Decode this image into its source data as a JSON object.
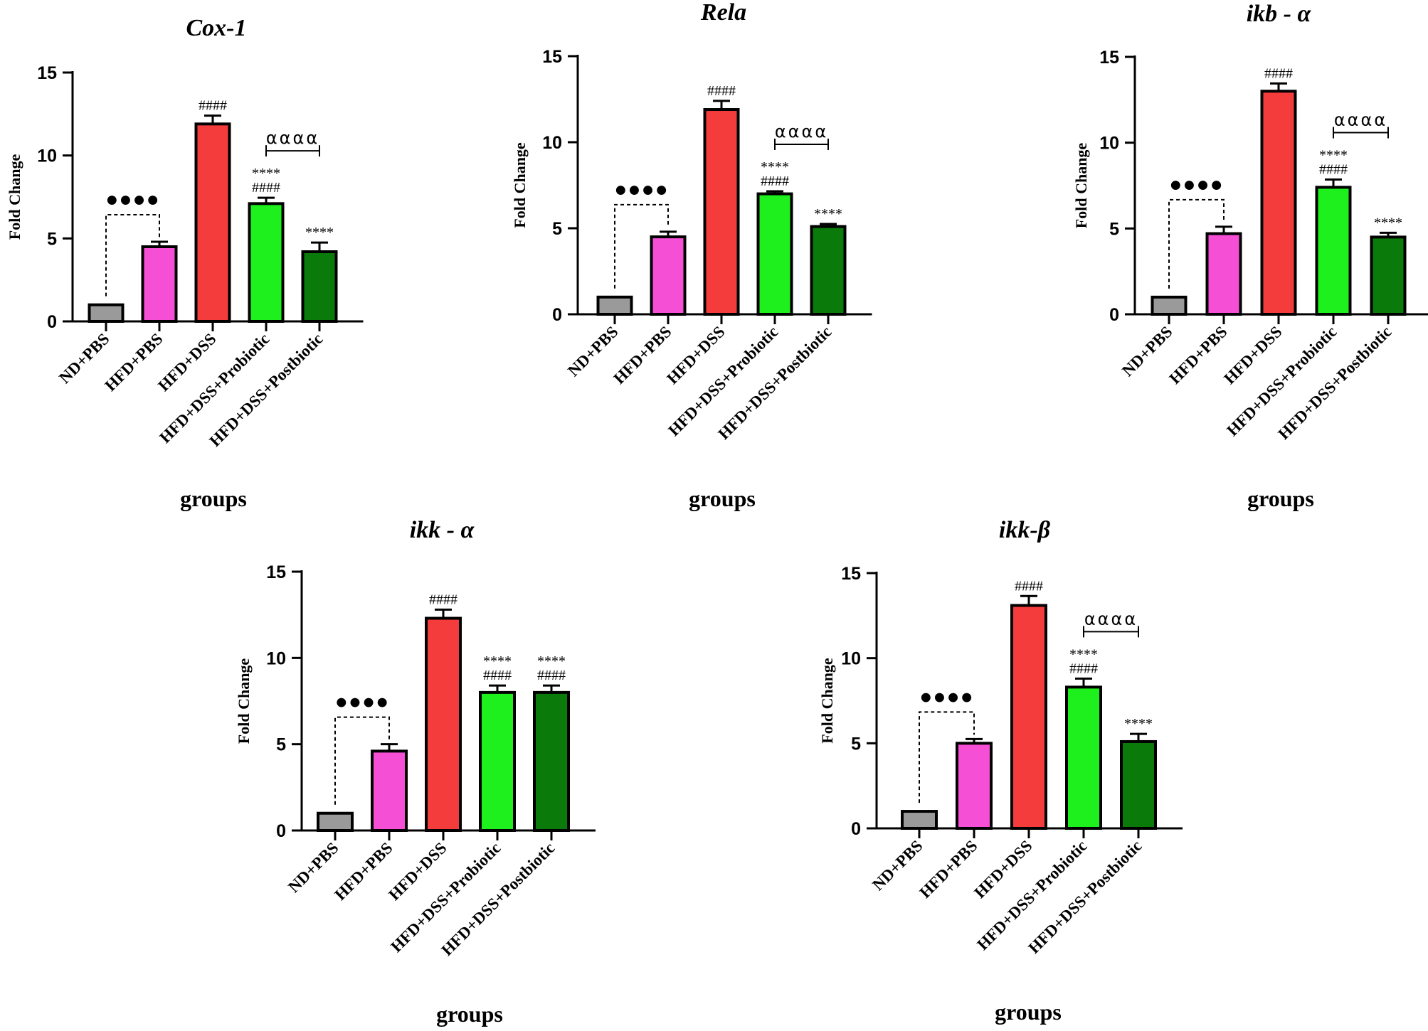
{
  "chart_data": [
    {
      "type": "bar",
      "title": "Cox-1",
      "xlabel": "groups",
      "ylabel": "Fold Change",
      "ylim": [
        0,
        15
      ],
      "yticks": [
        "0",
        "5",
        "10",
        "15"
      ],
      "categories": [
        "ND+PBS",
        "HFD+PBS",
        "HFD+DSS",
        "HFD+DSS+Probiotic",
        "HFD+DSS+Postbiotic"
      ],
      "values": [
        1.0,
        4.5,
        11.9,
        7.1,
        4.2
      ],
      "errors": [
        0.0,
        0.3,
        0.5,
        0.35,
        0.55
      ],
      "bar_annotations": [
        [],
        [],
        [
          "####"
        ],
        [
          "****",
          "####"
        ],
        [
          "****"
        ]
      ],
      "bracket_dots": "●●●●",
      "bracket_alpha": "αααα"
    },
    {
      "type": "bar",
      "title": "Rela",
      "xlabel": "groups",
      "ylabel": "Fold Change",
      "ylim": [
        0,
        15
      ],
      "yticks": [
        "0",
        "5",
        "10",
        "15"
      ],
      "categories": [
        "ND+PBS",
        "HFD+PBS",
        "HFD+DSS",
        "HFD+DSS+Probiotic",
        "HFD+DSS+Postbiotic"
      ],
      "values": [
        1.0,
        4.5,
        11.9,
        7.0,
        5.1
      ],
      "errors": [
        0.0,
        0.3,
        0.5,
        0.15,
        0.15
      ],
      "bar_annotations": [
        [],
        [],
        [
          "####"
        ],
        [
          "****",
          "####"
        ],
        [
          "****"
        ]
      ],
      "bracket_dots": "●●●●",
      "bracket_alpha": "αααα"
    },
    {
      "type": "bar",
      "title": "ikb - α",
      "xlabel": "groups",
      "ylabel": "Fold Change",
      "ylim": [
        0,
        15
      ],
      "yticks": [
        "0",
        "5",
        "10",
        "15"
      ],
      "categories": [
        "ND+PBS",
        "HFD+PBS",
        "HFD+DSS",
        "HFD+DSS+Probiotic",
        "HFD+DSS+Postbiotic"
      ],
      "values": [
        1.0,
        4.7,
        13.0,
        7.4,
        4.5
      ],
      "errors": [
        0.0,
        0.4,
        0.45,
        0.45,
        0.25
      ],
      "bar_annotations": [
        [],
        [],
        [
          "####"
        ],
        [
          "****",
          "####"
        ],
        [
          "****"
        ]
      ],
      "bracket_dots": "●●●●",
      "bracket_alpha": "αααα"
    },
    {
      "type": "bar",
      "title": "ikk - α",
      "xlabel": "groups",
      "ylabel": "Fold Change",
      "ylim": [
        0,
        15
      ],
      "yticks": [
        "0",
        "5",
        "10",
        "15"
      ],
      "categories": [
        "ND+PBS",
        "HFD+PBS",
        "HFD+DSS",
        "HFD+DSS+Probiotic",
        "HFD+DSS+Postbiotic"
      ],
      "values": [
        1.0,
        4.6,
        12.3,
        8.0,
        8.0
      ],
      "errors": [
        0.0,
        0.4,
        0.5,
        0.4,
        0.4
      ],
      "bar_annotations": [
        [],
        [],
        [
          "####"
        ],
        [
          "****",
          "####"
        ],
        [
          "****",
          "####"
        ]
      ],
      "bracket_dots": "●●●●",
      "bracket_alpha": ""
    },
    {
      "type": "bar",
      "title": "ikk-β",
      "xlabel": "groups",
      "ylabel": "Fold Change",
      "ylim": [
        0,
        15
      ],
      "yticks": [
        "0",
        "5",
        "10",
        "15"
      ],
      "categories": [
        "ND+PBS",
        "HFD+PBS",
        "HFD+DSS",
        "HFD+DSS+Probiotic",
        "HFD+DSS+Postbiotic"
      ],
      "values": [
        1.0,
        5.0,
        13.1,
        8.3,
        5.1
      ],
      "errors": [
        0.0,
        0.25,
        0.55,
        0.5,
        0.45
      ],
      "bar_annotations": [
        [],
        [],
        [
          "####"
        ],
        [
          "****",
          "####"
        ],
        [
          "****"
        ]
      ],
      "bracket_dots": "●●●●",
      "bracket_alpha": "αααα"
    }
  ],
  "colors": {
    "bar_fills": [
      "#9a9a9a",
      "#f54fd6",
      "#f43c3c",
      "#1ef01e",
      "#0a7a0a"
    ],
    "outline": "#000000"
  }
}
